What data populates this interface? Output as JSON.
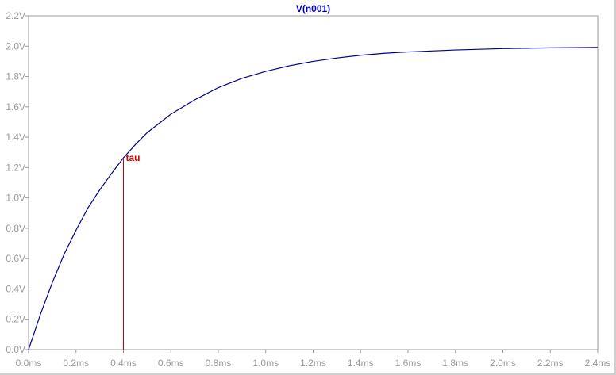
{
  "chart_data": {
    "type": "line",
    "title": "V(n001)",
    "xlabel": "",
    "ylabel": "",
    "xlim": [
      0,
      2.4
    ],
    "ylim": [
      0,
      2.2
    ],
    "x_tick_values": [
      0,
      0.2,
      0.4,
      0.6,
      0.8,
      1.0,
      1.2,
      1.4,
      1.6,
      1.8,
      2.0,
      2.2,
      2.4
    ],
    "x_tick_labels": [
      "0.0ms",
      "0.2ms",
      "0.4ms",
      "0.6ms",
      "0.8ms",
      "1.0ms",
      "1.2ms",
      "1.4ms",
      "1.6ms",
      "1.8ms",
      "2.0ms",
      "2.2ms",
      "2.4ms"
    ],
    "y_tick_values": [
      0,
      0.2,
      0.4,
      0.6,
      0.8,
      1.0,
      1.2,
      1.4,
      1.6,
      1.8,
      2.0,
      2.2
    ],
    "y_tick_labels": [
      "0.0V",
      "0.2V",
      "0.4V",
      "0.6V",
      "0.8V",
      "1.0V",
      "1.2V",
      "1.4V",
      "1.6V",
      "1.8V",
      "2.0V",
      "2.2V"
    ],
    "grid": false,
    "series": [
      {
        "color": "#00008b",
        "x": [
          0,
          0.05,
          0.1,
          0.15,
          0.2,
          0.25,
          0.3,
          0.35,
          0.4,
          0.45,
          0.5,
          0.6,
          0.7,
          0.8,
          0.9,
          1.0,
          1.1,
          1.2,
          1.3,
          1.4,
          1.5,
          1.6,
          1.8,
          2.0,
          2.2,
          2.4
        ],
        "y": [
          0,
          0.233,
          0.442,
          0.629,
          0.787,
          0.933,
          1.053,
          1.161,
          1.264,
          1.351,
          1.43,
          1.552,
          1.646,
          1.727,
          1.788,
          1.834,
          1.871,
          1.9,
          1.922,
          1.94,
          1.953,
          1.962,
          1.975,
          1.984,
          1.989,
          1.992
        ]
      }
    ],
    "annotations": [
      {
        "text": "tau",
        "x": 0.4,
        "y_top": 1.264,
        "y_bottom": 0,
        "color": "#cc0000"
      }
    ],
    "title_color": "#0000cc",
    "axis_color": "#9a9a9a"
  }
}
